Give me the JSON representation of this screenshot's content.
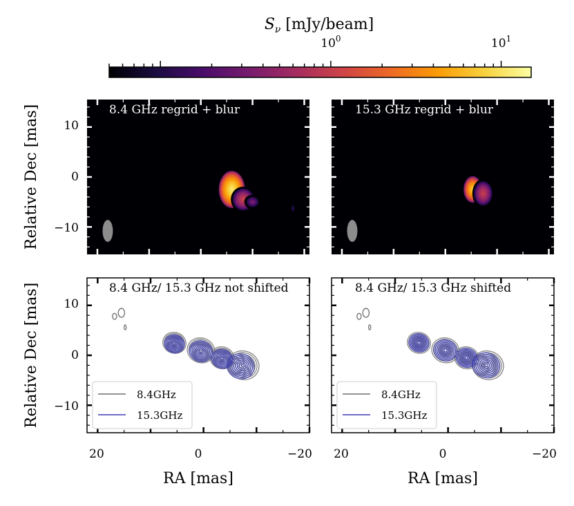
{
  "colorbar": {
    "label_symbol": "S",
    "label_sub": "ν",
    "label_unit": " [mJy/beam]",
    "scale": "log",
    "range": [
      0.05,
      15
    ],
    "major_ticks": [
      {
        "value": 1,
        "base": "10",
        "exp": "0"
      },
      {
        "value": 10,
        "base": "10",
        "exp": "1"
      }
    ],
    "colormap": "inferno",
    "colors": [
      "#000004",
      "#1b0c41",
      "#4a0c6b",
      "#781c6d",
      "#a52c60",
      "#cf4446",
      "#ed6925",
      "#fb9b06",
      "#f7d13d",
      "#fcffa4"
    ]
  },
  "chart_data": [
    {
      "type": "heatmap",
      "title": "8.4 GHz regrid + blur",
      "xlabel": "",
      "ylabel": "Relative Dec [mas]",
      "xlim": [
        22,
        -21
      ],
      "ylim": [
        -15.5,
        15.5
      ],
      "yticks": [
        10,
        0,
        -10
      ],
      "xticks": [],
      "ytick_labels": [
        "10",
        "0",
        "−10"
      ],
      "colormap": "inferno",
      "blobs": [
        {
          "x": -6.0,
          "y": -2.5,
          "sx": 1.7,
          "sy": 2.5,
          "peak_mJy": 12
        },
        {
          "x": -8.2,
          "y": -4.5,
          "sx": 1.5,
          "sy": 1.6,
          "peak_mJy": 1.2
        },
        {
          "x": -10.0,
          "y": -5.0,
          "sx": 1.0,
          "sy": 0.9,
          "peak_mJy": 0.4
        },
        {
          "x": -17.8,
          "y": -6.3,
          "sx": 0.5,
          "sy": 1.0,
          "peak_mJy": 0.12
        }
      ],
      "beam": {
        "x": 18,
        "y": -10.8,
        "major_mas": 2.2,
        "minor_mas": 1.0
      }
    },
    {
      "type": "heatmap",
      "title": "15.3 GHz regrid + blur",
      "xlabel": "",
      "ylabel": "",
      "xlim": [
        22,
        -21
      ],
      "ylim": [
        -15.5,
        15.5
      ],
      "yticks": [],
      "xticks": [],
      "colormap": "inferno",
      "blobs": [
        {
          "x": -5.3,
          "y": -2.5,
          "sx": 1.2,
          "sy": 1.8,
          "peak_mJy": 8
        },
        {
          "x": -7.3,
          "y": -3.3,
          "sx": 1.3,
          "sy": 1.8,
          "peak_mJy": 1.1
        }
      ],
      "beam": {
        "x": 18,
        "y": -10.8,
        "major_mas": 2.2,
        "minor_mas": 1.0
      }
    },
    {
      "type": "line",
      "subtype": "contour",
      "title": "8.4 GHz/ 15.3 GHz not shifted",
      "xlabel": "RA [mas]",
      "ylabel": "Relative Dec [mas]",
      "xlim": [
        22,
        -20
      ],
      "ylim": [
        -15.5,
        15.5
      ],
      "xticks": [
        20,
        0,
        -20
      ],
      "xtick_labels": [
        "20",
        "0",
        "−20"
      ],
      "yticks": [
        10,
        0,
        -10
      ],
      "ytick_labels": [
        "10",
        "0",
        "−10"
      ],
      "series": [
        {
          "name": "8.4GHz",
          "color": "#6e6e6e",
          "levels": 8,
          "components": [
            {
              "x": 5.5,
              "y": 2.5,
              "r": 2.2
            },
            {
              "x": 0.5,
              "y": 1.0,
              "r": 2.6
            },
            {
              "x": -3.5,
              "y": -0.5,
              "r": 2.3
            },
            {
              "x": -7.5,
              "y": -2.0,
              "r": 3.0
            }
          ],
          "outliers": [
            {
              "x": 15.5,
              "y": 8.5,
              "rx": 0.6,
              "ry": 0.9
            },
            {
              "x": 16.8,
              "y": 7.8,
              "rx": 0.4,
              "ry": 0.6
            },
            {
              "x": 14.8,
              "y": 5.6,
              "rx": 0.2,
              "ry": 0.5
            }
          ]
        },
        {
          "name": "15.3GHz",
          "color": "#3b3bb3",
          "levels": 8,
          "components": [
            {
              "x": 5.5,
              "y": 2.3,
              "r": 1.9
            },
            {
              "x": 0.5,
              "y": 0.8,
              "r": 2.2
            },
            {
              "x": -3.5,
              "y": -0.7,
              "r": 2.0
            },
            {
              "x": -7.0,
              "y": -2.2,
              "r": 2.6
            }
          ]
        }
      ],
      "legend": "lower-left"
    },
    {
      "type": "line",
      "subtype": "contour",
      "title": "8.4 GHz/ 15.3 GHz shifted",
      "xlabel": "RA [mas]",
      "ylabel": "",
      "xlim": [
        22,
        -20
      ],
      "ylim": [
        -15.5,
        15.5
      ],
      "xticks": [
        20,
        0,
        -20
      ],
      "xtick_labels": [
        "20",
        "0",
        "−20"
      ],
      "yticks": [],
      "series": [
        {
          "name": "8.4GHz",
          "color": "#6e6e6e",
          "levels": 8,
          "components": [
            {
              "x": 5.5,
              "y": 2.5,
              "r": 2.2
            },
            {
              "x": 0.5,
              "y": 1.0,
              "r": 2.6
            },
            {
              "x": -3.5,
              "y": -0.5,
              "r": 2.3
            },
            {
              "x": -7.5,
              "y": -2.0,
              "r": 3.0
            }
          ],
          "outliers": [
            {
              "x": 15.5,
              "y": 8.5,
              "rx": 0.6,
              "ry": 0.9
            },
            {
              "x": 16.8,
              "y": 7.8,
              "rx": 0.4,
              "ry": 0.6
            },
            {
              "x": 14.8,
              "y": 5.6,
              "rx": 0.2,
              "ry": 0.5
            }
          ]
        },
        {
          "name": "15.3GHz",
          "color": "#3b3bb3",
          "levels": 8,
          "components": [
            {
              "x": 5.5,
              "y": 2.5,
              "r": 1.9
            },
            {
              "x": 0.5,
              "y": 1.0,
              "r": 2.2
            },
            {
              "x": -3.5,
              "y": -0.5,
              "r": 2.0
            },
            {
              "x": -7.2,
              "y": -2.0,
              "r": 2.6
            }
          ]
        }
      ],
      "legend": "lower-left"
    }
  ]
}
